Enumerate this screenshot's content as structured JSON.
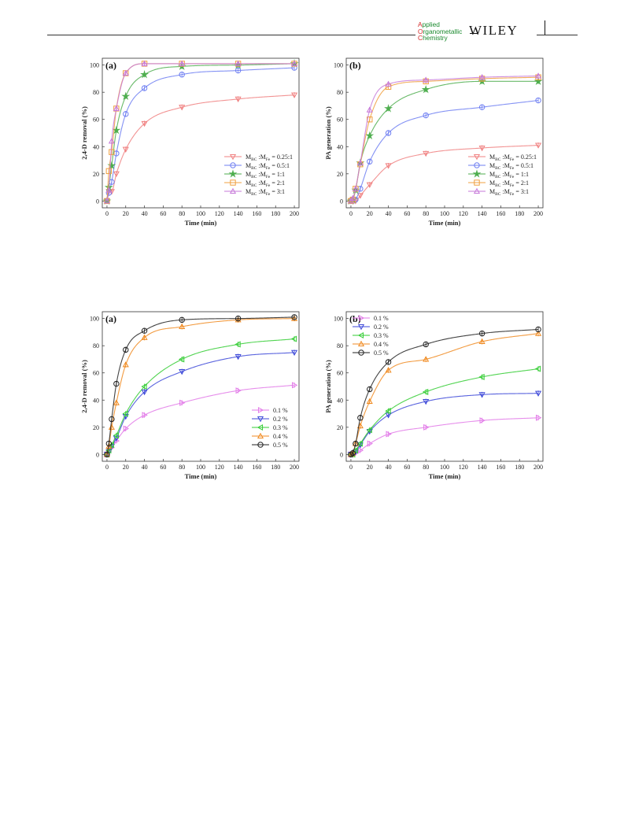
{
  "header": {
    "journal_lines": [
      {
        "initial": "A",
        "rest": "pplied"
      },
      {
        "initial": "O",
        "rest": "rganometallic"
      },
      {
        "initial": "C",
        "rest": "hemistry"
      }
    ],
    "publisher": "WILEY",
    "colors": {
      "initial": "#d22a2a",
      "text": "#1a8a2e"
    }
  },
  "chart_data": [
    {
      "type": "line",
      "panel_label": "(a)",
      "xlabel": "Time (min)",
      "ylabel": "2,4-D removal (%)",
      "xlim": [
        -5,
        205
      ],
      "ylim": [
        -5,
        105
      ],
      "xticks": [
        0,
        20,
        40,
        60,
        80,
        100,
        120,
        140,
        160,
        180,
        200
      ],
      "yticks": [
        0,
        20,
        40,
        60,
        80,
        100
      ],
      "legend_position": "bottom-right",
      "x": [
        0,
        2,
        5,
        10,
        20,
        40,
        80,
        140,
        200
      ],
      "series": [
        {
          "name_main": "M",
          "sub1": "BC",
          "mid": " :M",
          "sub2": "Fe",
          "tail": "= 0.25:1",
          "color": "#f08080",
          "marker": "triangle-down",
          "values": [
            0,
            7,
            7,
            20,
            38,
            57,
            69,
            75,
            78
          ]
        },
        {
          "name_main": "M",
          "sub1": "BC",
          "mid": " :M",
          "sub2": "Fe",
          "tail": "= 0.5:1",
          "color": "#6f7ff2",
          "marker": "circle",
          "values": [
            0,
            6,
            14,
            35,
            64,
            83,
            93,
            96,
            98
          ]
        },
        {
          "name_main": "M",
          "sub1": "BC",
          "mid": " :M",
          "sub2": "Fe",
          "tail": "= 1:1",
          "color": "#4fae4f",
          "marker": "star",
          "values": [
            0,
            10,
            26,
            52,
            77,
            93,
            99,
            100,
            101
          ]
        },
        {
          "name_main": "M",
          "sub1": "BC",
          "mid": " :M",
          "sub2": "Fe",
          "tail": "= 2:1",
          "color": "#f0a040",
          "marker": "square",
          "values": [
            0,
            22,
            36,
            68,
            94,
            101,
            101,
            101,
            101
          ]
        },
        {
          "name_main": "M",
          "sub1": "BC",
          "mid": " :M",
          "sub2": "Fe",
          "tail": "= 3:1",
          "color": "#c77ad9",
          "marker": "triangle-up",
          "values": [
            0,
            8,
            44,
            68,
            94,
            101,
            101,
            101,
            101
          ]
        }
      ]
    },
    {
      "type": "line",
      "panel_label": "(b)",
      "xlabel": "Time (min)",
      "ylabel": "PA generation (%)",
      "xlim": [
        -5,
        205
      ],
      "ylim": [
        -5,
        105
      ],
      "xticks": [
        0,
        20,
        40,
        60,
        80,
        100,
        120,
        140,
        160,
        180,
        200
      ],
      "yticks": [
        0,
        20,
        40,
        60,
        80,
        100
      ],
      "legend_position": "bottom-right",
      "x": [
        0,
        2,
        5,
        10,
        20,
        40,
        80,
        140,
        200
      ],
      "series": [
        {
          "name_main": "M",
          "sub1": "BC",
          "mid": " :M",
          "sub2": "Fe",
          "tail": "= 0.25:1",
          "color": "#f08080",
          "marker": "triangle-down",
          "values": [
            0,
            0,
            0,
            4,
            12,
            26,
            35,
            39,
            41
          ]
        },
        {
          "name_main": "M",
          "sub1": "BC",
          "mid": " :M",
          "sub2": "Fe",
          "tail": "= 0.5:1",
          "color": "#6f7ff2",
          "marker": "circle",
          "values": [
            0,
            0,
            1,
            9,
            29,
            50,
            63,
            69,
            74
          ]
        },
        {
          "name_main": "M",
          "sub1": "BC",
          "mid": " :M",
          "sub2": "Fe",
          "tail": "= 1:1",
          "color": "#4fae4f",
          "marker": "star",
          "values": [
            0,
            1,
            8,
            28,
            48,
            68,
            82,
            88,
            88
          ]
        },
        {
          "name_main": "M",
          "sub1": "BC",
          "mid": " :M",
          "sub2": "Fe",
          "tail": "= 2:1",
          "color": "#f0a040",
          "marker": "square",
          "values": [
            0,
            1,
            9,
            27,
            60,
            84,
            88,
            90,
            91
          ]
        },
        {
          "name_main": "M",
          "sub1": "BC",
          "mid": " :M",
          "sub2": "Fe",
          "tail": "= 3:1",
          "color": "#c77ad9",
          "marker": "triangle-up",
          "values": [
            0,
            2,
            9,
            28,
            67,
            86,
            89,
            91,
            92
          ]
        }
      ]
    },
    {
      "type": "line",
      "panel_label": "(a)",
      "xlabel": "Time (min)",
      "ylabel": "2,4-D removal (%)",
      "xlim": [
        -5,
        205
      ],
      "ylim": [
        -5,
        105
      ],
      "xticks": [
        0,
        20,
        40,
        60,
        80,
        100,
        120,
        140,
        160,
        180,
        200
      ],
      "yticks": [
        0,
        20,
        40,
        60,
        80,
        100
      ],
      "legend_position": "bottom-right",
      "x": [
        0,
        2,
        5,
        10,
        20,
        40,
        80,
        140,
        200
      ],
      "series": [
        {
          "name_main": "0.1 %",
          "color": "#e27ae8",
          "marker": "triangle-right",
          "values": [
            0,
            2,
            5,
            10,
            19,
            29,
            38,
            47,
            51
          ]
        },
        {
          "name_main": "0.2 %",
          "color": "#3c48d8",
          "marker": "triangle-down",
          "values": [
            0,
            2,
            6,
            12,
            28,
            46,
            61,
            72,
            75
          ]
        },
        {
          "name_main": "0.3 %",
          "color": "#33cc33",
          "marker": "triangle-left",
          "values": [
            0,
            3,
            7,
            14,
            30,
            50,
            70,
            81,
            85
          ]
        },
        {
          "name_main": "0.4 %",
          "color": "#f08a20",
          "marker": "triangle-up",
          "values": [
            0,
            6,
            20,
            38,
            66,
            86,
            94,
            99,
            100
          ]
        },
        {
          "name_main": "0.5 %",
          "color": "#222222",
          "marker": "circle",
          "values": [
            0,
            8,
            26,
            52,
            77,
            91,
            99,
            100,
            101
          ]
        }
      ]
    },
    {
      "type": "line",
      "panel_label": "(b)",
      "xlabel": "Time (min)",
      "ylabel": "PA generation (%)",
      "xlim": [
        -5,
        205
      ],
      "ylim": [
        -5,
        105
      ],
      "xticks": [
        0,
        20,
        40,
        60,
        80,
        100,
        120,
        140,
        160,
        180,
        200
      ],
      "yticks": [
        0,
        20,
        40,
        60,
        80,
        100
      ],
      "legend_position": "top-left",
      "x": [
        0,
        2,
        5,
        10,
        20,
        40,
        80,
        140,
        200
      ],
      "series": [
        {
          "name_main": "0.1 %",
          "color": "#e27ae8",
          "marker": "triangle-right",
          "values": [
            0,
            0,
            1,
            3,
            8,
            15,
            20,
            25,
            27
          ]
        },
        {
          "name_main": "0.2 %",
          "color": "#3c48d8",
          "marker": "triangle-down",
          "values": [
            0,
            0,
            2,
            7,
            17,
            29,
            39,
            44,
            45
          ]
        },
        {
          "name_main": "0.3 %",
          "color": "#33cc33",
          "marker": "triangle-left",
          "values": [
            0,
            0,
            3,
            8,
            18,
            32,
            46,
            57,
            63
          ]
        },
        {
          "name_main": "0.4 %",
          "color": "#f08a20",
          "marker": "triangle-up",
          "values": [
            0,
            1,
            8,
            21,
            39,
            62,
            70,
            83,
            89
          ]
        },
        {
          "name_main": "0.5 %",
          "color": "#222222",
          "marker": "circle",
          "values": [
            0,
            1,
            8,
            27,
            48,
            68,
            81,
            89,
            92
          ]
        }
      ]
    }
  ]
}
